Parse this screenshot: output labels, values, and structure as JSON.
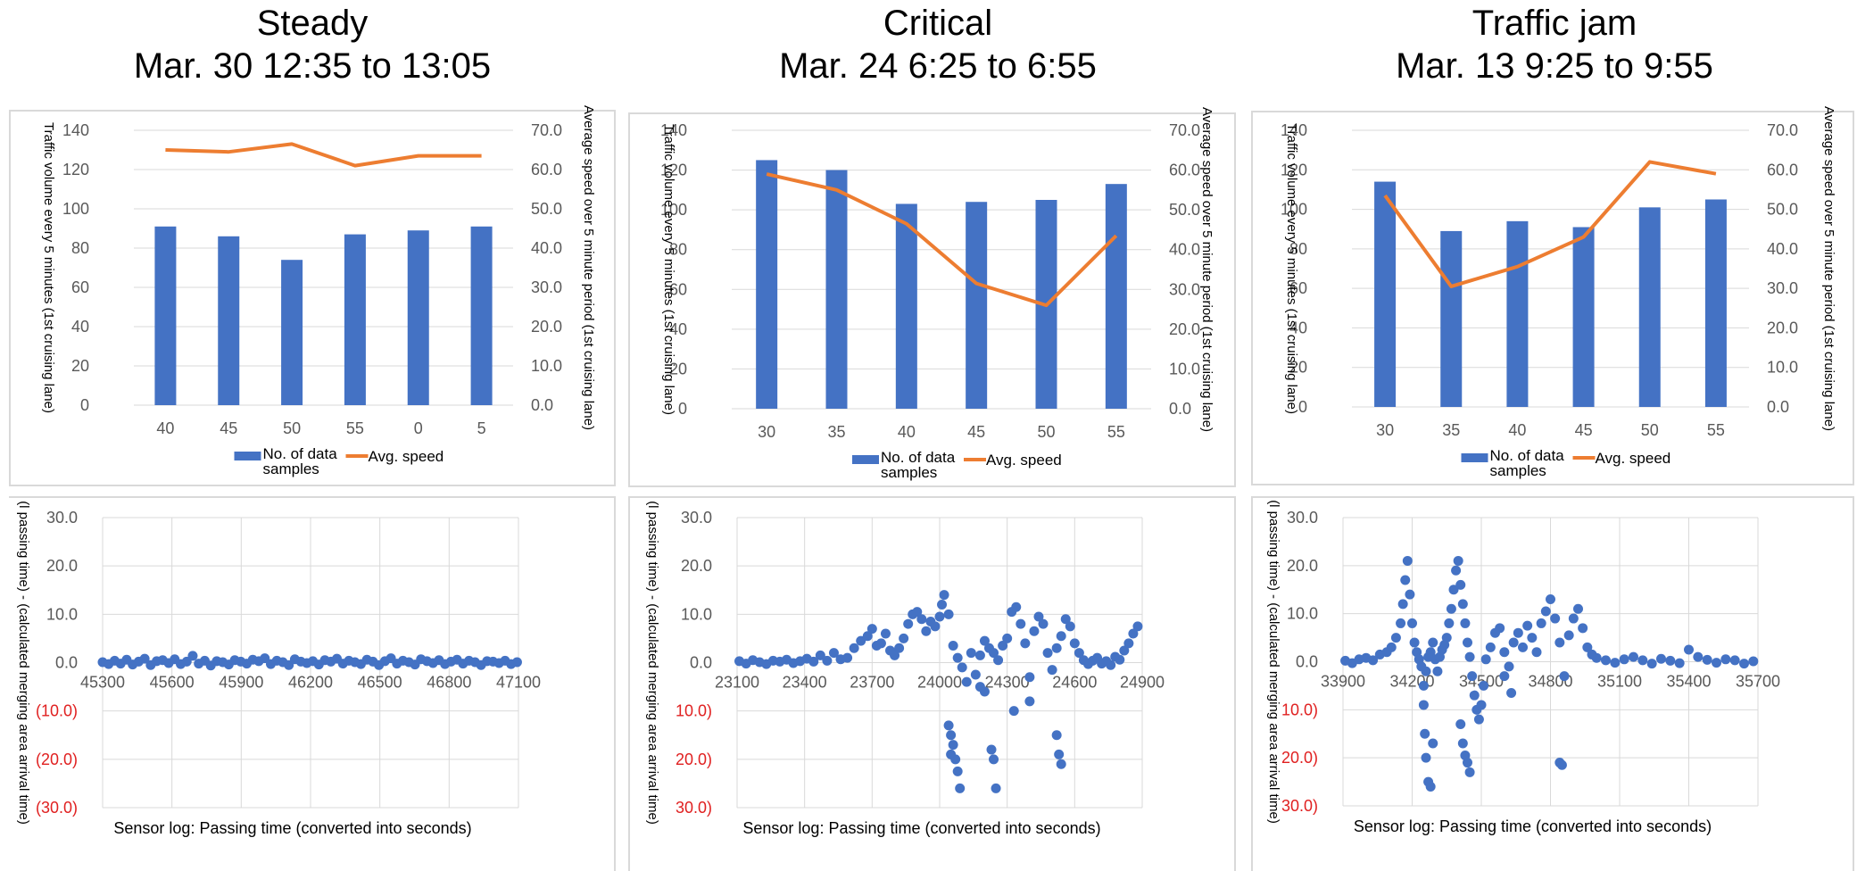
{
  "columns": [
    {
      "title": "Steady",
      "period": "Mar. 30 12:35 to 13:05"
    },
    {
      "title": "Critical",
      "period": "Mar. 24 6:25 to 6:55"
    },
    {
      "title": "Traffic jam",
      "period": "Mar. 13 9:25 to 9:55"
    }
  ],
  "colors": {
    "bar": "#4472c4",
    "line": "#ed7d31",
    "negative_label": "#e02020",
    "grid": "#d9d9d9"
  },
  "chart_data": [
    {
      "type": "bar",
      "title": "Steady",
      "categories": [
        "40",
        "45",
        "50",
        "55",
        "0",
        "5"
      ],
      "series": [
        {
          "name": "No. of data samples",
          "axis": "left",
          "values": [
            91,
            86,
            74,
            87,
            89,
            91
          ]
        },
        {
          "name": "Avg. speed",
          "type": "line",
          "axis": "right",
          "values": [
            65.0,
            64.5,
            66.5,
            61.0,
            63.5,
            63.5
          ]
        }
      ],
      "ylabel": "Traffic volume every 5 minutes (1st cruising lane)",
      "y2label": "Average speed over 5 minute period (1st cruising lane)",
      "ylim": [
        0,
        140
      ],
      "y2lim": [
        0,
        70
      ],
      "yticks": [
        "0",
        "20",
        "40",
        "60",
        "80",
        "100",
        "120",
        "140"
      ],
      "y2ticks": [
        "0.0",
        "10.0",
        "20.0",
        "30.0",
        "40.0",
        "50.0",
        "60.0",
        "70.0"
      ],
      "legend": [
        "No. of data samples",
        "Avg. speed"
      ],
      "legend_position": "bottom"
    },
    {
      "type": "bar",
      "title": "Critical",
      "categories": [
        "30",
        "35",
        "40",
        "45",
        "50",
        "55"
      ],
      "series": [
        {
          "name": "No. of data samples",
          "axis": "left",
          "values": [
            125,
            120,
            103,
            104,
            105,
            113
          ]
        },
        {
          "name": "Avg. speed",
          "type": "line",
          "axis": "right",
          "values": [
            59.0,
            55.0,
            46.5,
            31.5,
            26.0,
            43.5
          ]
        }
      ],
      "ylabel": "Traffic volume every 5 minutes (1st cruising lane)",
      "y2label": "Average speed over 5 minute period (1st cruising lane)",
      "ylim": [
        0,
        140
      ],
      "y2lim": [
        0,
        70
      ],
      "yticks": [
        "0",
        "20",
        "40",
        "60",
        "80",
        "100",
        "120",
        "140"
      ],
      "y2ticks": [
        "0.0",
        "10.0",
        "20.0",
        "30.0",
        "40.0",
        "50.0",
        "60.0",
        "70.0"
      ],
      "legend": [
        "No. of data samples",
        "Avg. speed"
      ],
      "legend_position": "bottom"
    },
    {
      "type": "bar",
      "title": "Traffic jam",
      "categories": [
        "30",
        "35",
        "40",
        "45",
        "50",
        "55"
      ],
      "series": [
        {
          "name": "No. of data samples",
          "axis": "left",
          "values": [
            114,
            89,
            94,
            91,
            101,
            105
          ]
        },
        {
          "name": "Avg. speed",
          "type": "line",
          "axis": "right",
          "values": [
            53.5,
            30.5,
            35.5,
            43.0,
            62.0,
            59.0
          ]
        }
      ],
      "ylabel": "Traffic volume every 5 minutes (1st cruising lane)",
      "y2label": "Average speed over 5 minute period (1st cruising lane)",
      "ylim": [
        0,
        140
      ],
      "y2lim": [
        0,
        70
      ],
      "yticks": [
        "0",
        "20",
        "40",
        "60",
        "80",
        "100",
        "120",
        "140"
      ],
      "y2ticks": [
        "0.0",
        "10.0",
        "20.0",
        "30.0",
        "40.0",
        "50.0",
        "60.0",
        "70.0"
      ],
      "legend": [
        "No. of data samples",
        "Avg. speed"
      ],
      "legend_position": "bottom"
    },
    {
      "type": "scatter",
      "title": "Steady",
      "xlabel": "Sensor log: Passing time (converted into seconds)",
      "ylabel": "(l passing time) - (calculated merging area arrival time)",
      "xlim": [
        45300,
        47100
      ],
      "ylim": [
        -30,
        30
      ],
      "xticks": [
        "45300",
        "45600",
        "45900",
        "46200",
        "46500",
        "46800",
        "47100"
      ],
      "yticks": [
        "30.0",
        "20.0",
        "10.0",
        "0.0",
        "(10.0)",
        "(20.0)",
        "(30.0)"
      ],
      "x": [
        45300,
        45326,
        45352,
        45378,
        45404,
        45430,
        45456,
        45482,
        45508,
        45534,
        45560,
        45586,
        45612,
        45638,
        45664,
        45690,
        45716,
        45742,
        45768,
        45794,
        45820,
        45846,
        45872,
        45898,
        45924,
        45950,
        45976,
        46002,
        46028,
        46054,
        46080,
        46106,
        46132,
        46158,
        46184,
        46210,
        46236,
        46262,
        46288,
        46314,
        46340,
        46366,
        46392,
        46418,
        46444,
        46470,
        46496,
        46522,
        46548,
        46574,
        46600,
        46626,
        46652,
        46678,
        46704,
        46730,
        46756,
        46782,
        46808,
        46834,
        46860,
        46886,
        46912,
        46938,
        46964,
        46990,
        47016,
        47042,
        47068,
        47094
      ],
      "y": [
        0.1,
        -0.3,
        0.4,
        -0.2,
        0.6,
        -0.4,
        0.2,
        0.8,
        -0.5,
        0.3,
        0.5,
        -0.1,
        0.7,
        -0.3,
        0.2,
        1.4,
        -0.2,
        0.4,
        -0.6,
        0.3,
        0.1,
        -0.4,
        0.5,
        0.2,
        -0.2,
        0.6,
        0.3,
        0.9,
        -0.3,
        0.4,
        0.1,
        -0.5,
        0.7,
        0.2,
        -0.1,
        0.3,
        -0.4,
        0.5,
        0.2,
        0.8,
        -0.2,
        0.4,
        0.1,
        -0.3,
        0.6,
        0.2,
        -0.5,
        0.3,
        0.9,
        -0.2,
        0.4,
        0.1,
        -0.4,
        0.7,
        0.3,
        -0.1,
        0.5,
        -0.3,
        0.2,
        0.6,
        -0.2,
        0.4,
        0.1,
        -0.5,
        0.3,
        0.2,
        -0.1,
        0.4,
        -0.3,
        0.1
      ]
    },
    {
      "type": "scatter",
      "title": "Critical",
      "xlabel": "Sensor log: Passing time (converted into seconds)",
      "ylabel": "(l passing time) - (calculated merging area arrival time)",
      "xlim": [
        23100,
        24900
      ],
      "ylim": [
        -30,
        30
      ],
      "xticks": [
        "23100",
        "23400",
        "23700",
        "24000",
        "24300",
        "24600",
        "24900"
      ],
      "yticks": [
        "30.0",
        "20.0",
        "10.0",
        "0.0",
        "10.0)",
        "20.0)",
        "30.0)"
      ],
      "x": [
        23110,
        23140,
        23170,
        23200,
        23230,
        23260,
        23290,
        23320,
        23350,
        23380,
        23410,
        23440,
        23470,
        23500,
        23530,
        23560,
        23590,
        23620,
        23650,
        23680,
        23700,
        23720,
        23740,
        23760,
        23780,
        23800,
        23820,
        23840,
        23860,
        23880,
        23900,
        23920,
        23940,
        23960,
        23980,
        24000,
        24010,
        24020,
        24040,
        24060,
        24080,
        24100,
        24120,
        24140,
        24160,
        24180,
        24200,
        24220,
        24240,
        24260,
        24280,
        24300,
        24320,
        24340,
        24360,
        24380,
        24400,
        24420,
        24440,
        24460,
        24480,
        24500,
        24520,
        24540,
        24560,
        24580,
        24600,
        24620,
        24640,
        24660,
        24680,
        24700,
        24720,
        24740,
        24760,
        24780,
        24800,
        24820,
        24840,
        24860,
        24880,
        24040,
        24050,
        24060,
        24070,
        24080,
        24090,
        24230,
        24240,
        24250,
        24520,
        24530,
        24540,
        24400,
        24330,
        24180,
        24200,
        24050
      ],
      "y": [
        0.3,
        -0.2,
        0.5,
        0.1,
        -0.3,
        0.4,
        0.2,
        0.6,
        -0.1,
        0.3,
        0.8,
        0.2,
        1.5,
        0.4,
        2.0,
        0.7,
        1.0,
        3.0,
        4.5,
        5.5,
        7.0,
        3.5,
        4.0,
        6.0,
        2.5,
        1.5,
        3.0,
        5.0,
        8.0,
        10.0,
        10.5,
        9.0,
        6.5,
        8.5,
        7.5,
        9.5,
        12.0,
        14.0,
        10.0,
        3.5,
        1.0,
        -1.0,
        -4.0,
        2.0,
        -2.5,
        1.5,
        4.5,
        3.0,
        2.0,
        0.5,
        3.5,
        5.0,
        10.5,
        11.5,
        8.0,
        4.0,
        -3.0,
        6.5,
        9.5,
        8.0,
        2.0,
        -1.5,
        3.0,
        5.5,
        9.0,
        7.5,
        4.0,
        2.0,
        0.5,
        -0.3,
        0.4,
        1.0,
        -0.2,
        0.3,
        -0.5,
        1.2,
        0.6,
        2.5,
        4.0,
        6.0,
        7.5,
        -13.0,
        -15.0,
        -17.0,
        -20.0,
        -22.5,
        -26.0,
        -18.0,
        -20.0,
        -26.0,
        -15.0,
        -19.0,
        -21.0,
        -8.0,
        -10.0,
        -5.0,
        -6.0,
        -19.0
      ]
    },
    {
      "type": "scatter",
      "title": "Traffic jam",
      "xlabel": "Sensor log: Passing time (converted into seconds)",
      "ylabel": "(l passing time) - (calculated merging area arrival time)",
      "xlim": [
        33900,
        35700
      ],
      "ylim": [
        -30,
        30
      ],
      "xticks": [
        "33900",
        "34200",
        "34500",
        "34800",
        "35100",
        "35400",
        "35700"
      ],
      "yticks": [
        "30.0",
        "20.0",
        "10.0",
        "0.0",
        "10.0)",
        "20.0)",
        "30.0)"
      ],
      "x": [
        33910,
        33940,
        33970,
        34000,
        34030,
        34060,
        34090,
        34110,
        34130,
        34150,
        34160,
        34170,
        34180,
        34190,
        34200,
        34210,
        34220,
        34230,
        34240,
        34250,
        34260,
        34270,
        34280,
        34290,
        34300,
        34310,
        34320,
        34330,
        34340,
        34350,
        34360,
        34370,
        34380,
        34390,
        34400,
        34410,
        34420,
        34430,
        34440,
        34450,
        34460,
        34470,
        34480,
        34490,
        34500,
        34510,
        34520,
        34540,
        34560,
        34580,
        34600,
        34620,
        34640,
        34660,
        34680,
        34700,
        34720,
        34740,
        34760,
        34780,
        34800,
        34820,
        34840,
        34860,
        34880,
        34900,
        34920,
        34940,
        34960,
        34980,
        35000,
        35040,
        35080,
        35120,
        35160,
        35200,
        35240,
        35280,
        35320,
        35360,
        35400,
        35440,
        35480,
        35520,
        35560,
        35600,
        35640,
        35680,
        34250,
        34255,
        34260,
        34270,
        34280,
        34290,
        34410,
        34420,
        34430,
        34440,
        34450,
        34840,
        34850,
        34600,
        34630
      ],
      "y": [
        0.2,
        -0.3,
        0.5,
        0.8,
        0.3,
        1.5,
        2.0,
        3.0,
        5.0,
        8.0,
        12.0,
        17.0,
        21.0,
        14.0,
        8.0,
        4.0,
        2.0,
        0.5,
        -1.0,
        -5.0,
        -2.0,
        1.0,
        2.0,
        4.0,
        0.5,
        -2.0,
        1.0,
        2.5,
        3.5,
        5.0,
        8.0,
        11.0,
        15.0,
        19.0,
        21.0,
        16.0,
        12.0,
        8.0,
        4.0,
        1.0,
        -3.0,
        -7.0,
        -10.0,
        -12.0,
        -9.0,
        -5.0,
        0.5,
        3.0,
        6.0,
        7.0,
        2.0,
        -1.0,
        4.0,
        6.0,
        3.0,
        7.5,
        5.0,
        2.0,
        8.0,
        10.5,
        13.0,
        9.0,
        4.0,
        -3.0,
        5.5,
        9.0,
        11.0,
        7.0,
        3.0,
        1.5,
        0.8,
        0.3,
        -0.2,
        0.5,
        1.0,
        0.3,
        -0.4,
        0.6,
        0.2,
        -0.3,
        2.5,
        1.0,
        0.4,
        -0.2,
        0.5,
        0.3,
        -0.4,
        0.1,
        -9.0,
        -15.0,
        -20.0,
        -25.0,
        -26.0,
        -17.0,
        -13.0,
        -17.0,
        -19.5,
        -21.0,
        -23.0,
        -21.0,
        -21.5,
        -3.0,
        -6.5
      ]
    }
  ]
}
